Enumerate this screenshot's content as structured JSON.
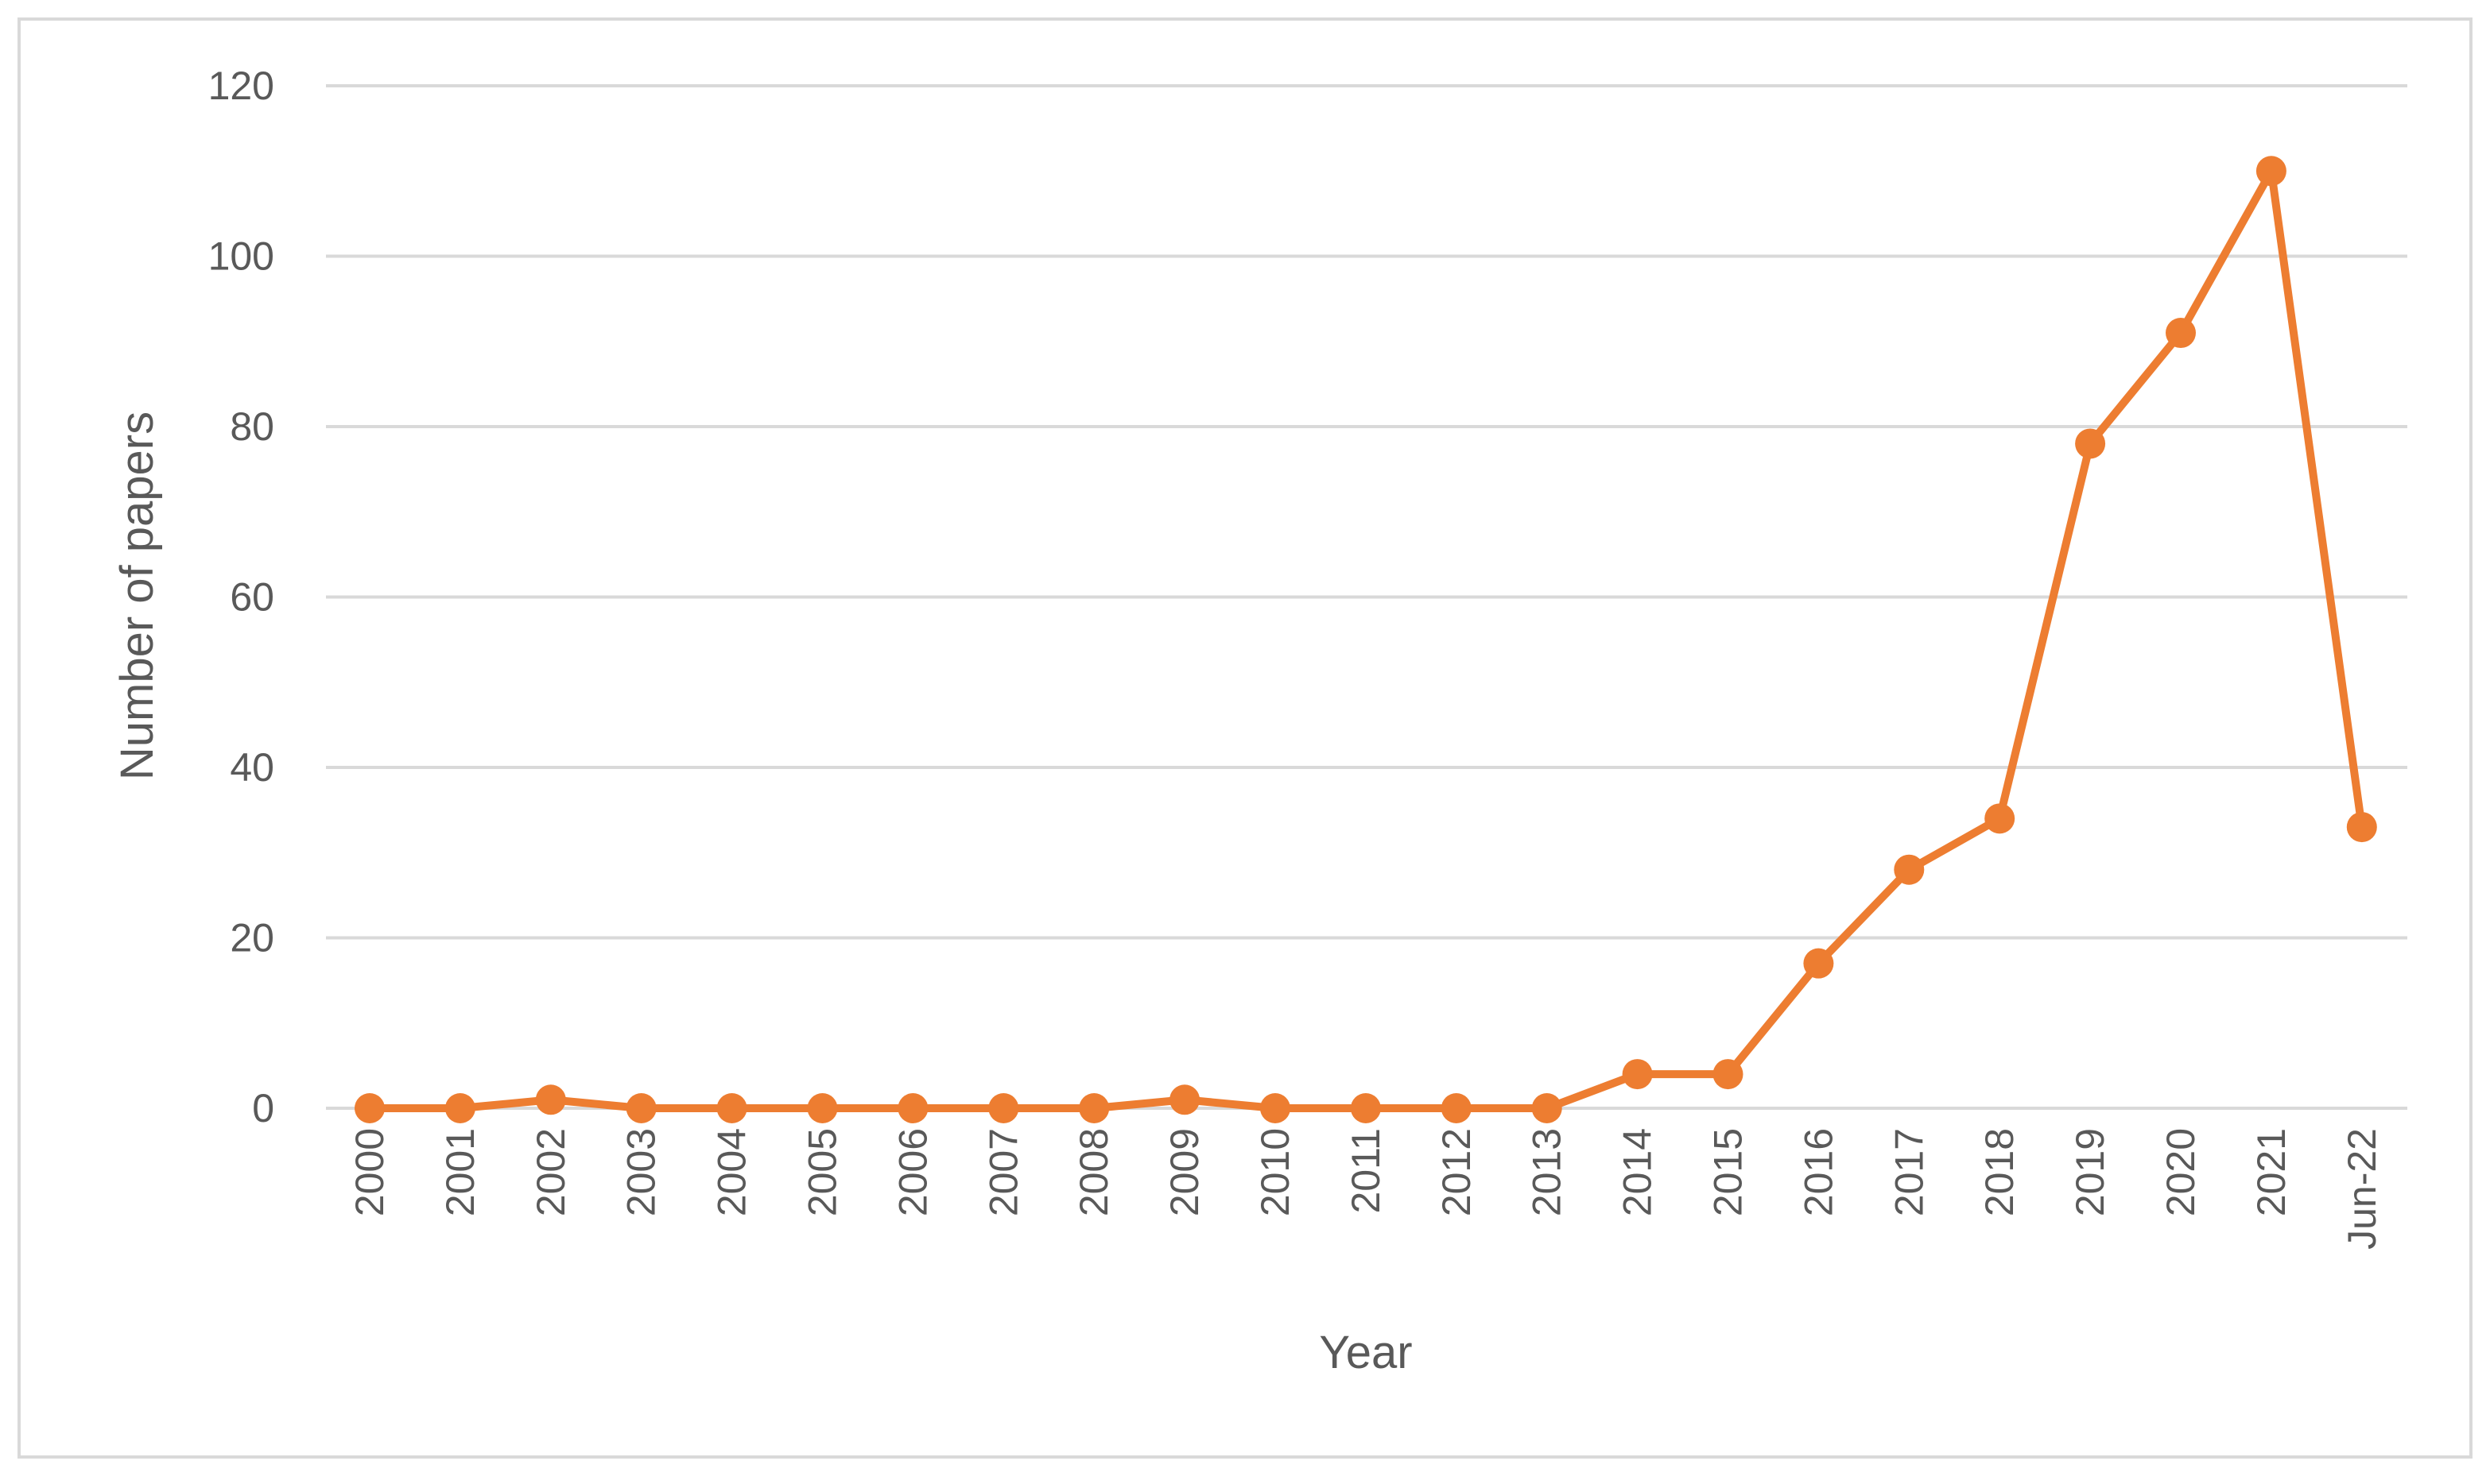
{
  "chart_data": {
    "type": "line",
    "title": "",
    "xlabel": "Year",
    "ylabel": "Number of papers",
    "categories": [
      "2000",
      "2001",
      "2002",
      "2003",
      "2004",
      "2005",
      "2006",
      "2007",
      "2008",
      "2009",
      "2010",
      "2011",
      "2012",
      "2013",
      "2014",
      "2015",
      "2016",
      "2017",
      "2018",
      "2019",
      "2020",
      "2021",
      "Jun-22"
    ],
    "series": [
      {
        "values": [
          0,
          0,
          1,
          0,
          0,
          0,
          0,
          0,
          0,
          1,
          0,
          0,
          0,
          0,
          4,
          4,
          17,
          28,
          34,
          78,
          91,
          110,
          33
        ],
        "color": "#ed7d31"
      }
    ],
    "ylim": [
      0,
      120
    ],
    "yticks": [
      0,
      20,
      40,
      60,
      80,
      100,
      120
    ],
    "grid": true,
    "legend": "none",
    "colors": {
      "series": "#ed7d31",
      "grid": "#d9d9d9",
      "text": "#595959",
      "frame": "#d9d9d9"
    }
  }
}
